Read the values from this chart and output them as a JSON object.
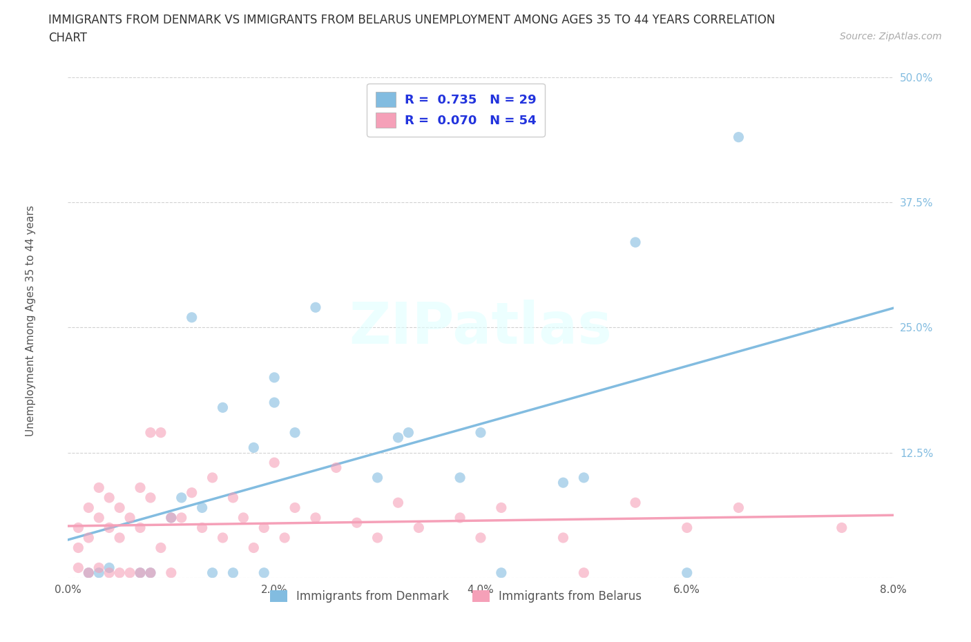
{
  "title_line1": "IMMIGRANTS FROM DENMARK VS IMMIGRANTS FROM BELARUS UNEMPLOYMENT AMONG AGES 35 TO 44 YEARS CORRELATION",
  "title_line2": "CHART",
  "source": "Source: ZipAtlas.com",
  "ylabel": "Unemployment Among Ages 35 to 44 years",
  "xlim": [
    0.0,
    0.08
  ],
  "ylim": [
    0.0,
    0.5
  ],
  "xticks": [
    0.0,
    0.02,
    0.04,
    0.06,
    0.08
  ],
  "xtick_labels": [
    "0.0%",
    "2.0%",
    "4.0%",
    "6.0%",
    "8.0%"
  ],
  "yticks": [
    0.0,
    0.125,
    0.25,
    0.375,
    0.5
  ],
  "ytick_labels": [
    "",
    "12.5%",
    "25.0%",
    "37.5%",
    "50.0%"
  ],
  "denmark_color": "#82bce0",
  "belarus_color": "#f5a0b8",
  "R_denmark": 0.735,
  "N_denmark": 29,
  "R_belarus": 0.07,
  "N_belarus": 54,
  "legend_label_denmark": "Immigrants from Denmark",
  "legend_label_belarus": "Immigrants from Belarus",
  "watermark": "ZIPatlas",
  "denmark_x": [
    0.002,
    0.003,
    0.004,
    0.007,
    0.008,
    0.01,
    0.011,
    0.012,
    0.013,
    0.014,
    0.015,
    0.016,
    0.018,
    0.019,
    0.02,
    0.02,
    0.022,
    0.024,
    0.03,
    0.032,
    0.033,
    0.038,
    0.04,
    0.042,
    0.048,
    0.05,
    0.055,
    0.06,
    0.065
  ],
  "denmark_y": [
    0.005,
    0.005,
    0.01,
    0.005,
    0.005,
    0.06,
    0.08,
    0.26,
    0.07,
    0.005,
    0.17,
    0.005,
    0.13,
    0.005,
    0.175,
    0.2,
    0.145,
    0.27,
    0.1,
    0.14,
    0.145,
    0.1,
    0.145,
    0.005,
    0.095,
    0.1,
    0.335,
    0.005,
    0.44
  ],
  "belarus_x": [
    0.001,
    0.001,
    0.001,
    0.002,
    0.002,
    0.002,
    0.003,
    0.003,
    0.003,
    0.004,
    0.004,
    0.004,
    0.005,
    0.005,
    0.005,
    0.006,
    0.006,
    0.007,
    0.007,
    0.007,
    0.008,
    0.008,
    0.008,
    0.009,
    0.009,
    0.01,
    0.01,
    0.011,
    0.012,
    0.013,
    0.014,
    0.015,
    0.016,
    0.017,
    0.018,
    0.019,
    0.02,
    0.021,
    0.022,
    0.024,
    0.026,
    0.028,
    0.03,
    0.032,
    0.034,
    0.038,
    0.04,
    0.042,
    0.048,
    0.05,
    0.055,
    0.06,
    0.065,
    0.075
  ],
  "belarus_y": [
    0.03,
    0.05,
    0.01,
    0.04,
    0.07,
    0.005,
    0.06,
    0.09,
    0.01,
    0.05,
    0.08,
    0.005,
    0.04,
    0.07,
    0.005,
    0.06,
    0.005,
    0.09,
    0.05,
    0.005,
    0.145,
    0.08,
    0.005,
    0.145,
    0.03,
    0.06,
    0.005,
    0.06,
    0.085,
    0.05,
    0.1,
    0.04,
    0.08,
    0.06,
    0.03,
    0.05,
    0.115,
    0.04,
    0.07,
    0.06,
    0.11,
    0.055,
    0.04,
    0.075,
    0.05,
    0.06,
    0.04,
    0.07,
    0.04,
    0.005,
    0.075,
    0.05,
    0.07,
    0.05
  ],
  "background_color": "#ffffff",
  "grid_color": "#cccccc",
  "title_color": "#333333",
  "tick_color": "#555555",
  "legend_text_color": "#2233dd"
}
